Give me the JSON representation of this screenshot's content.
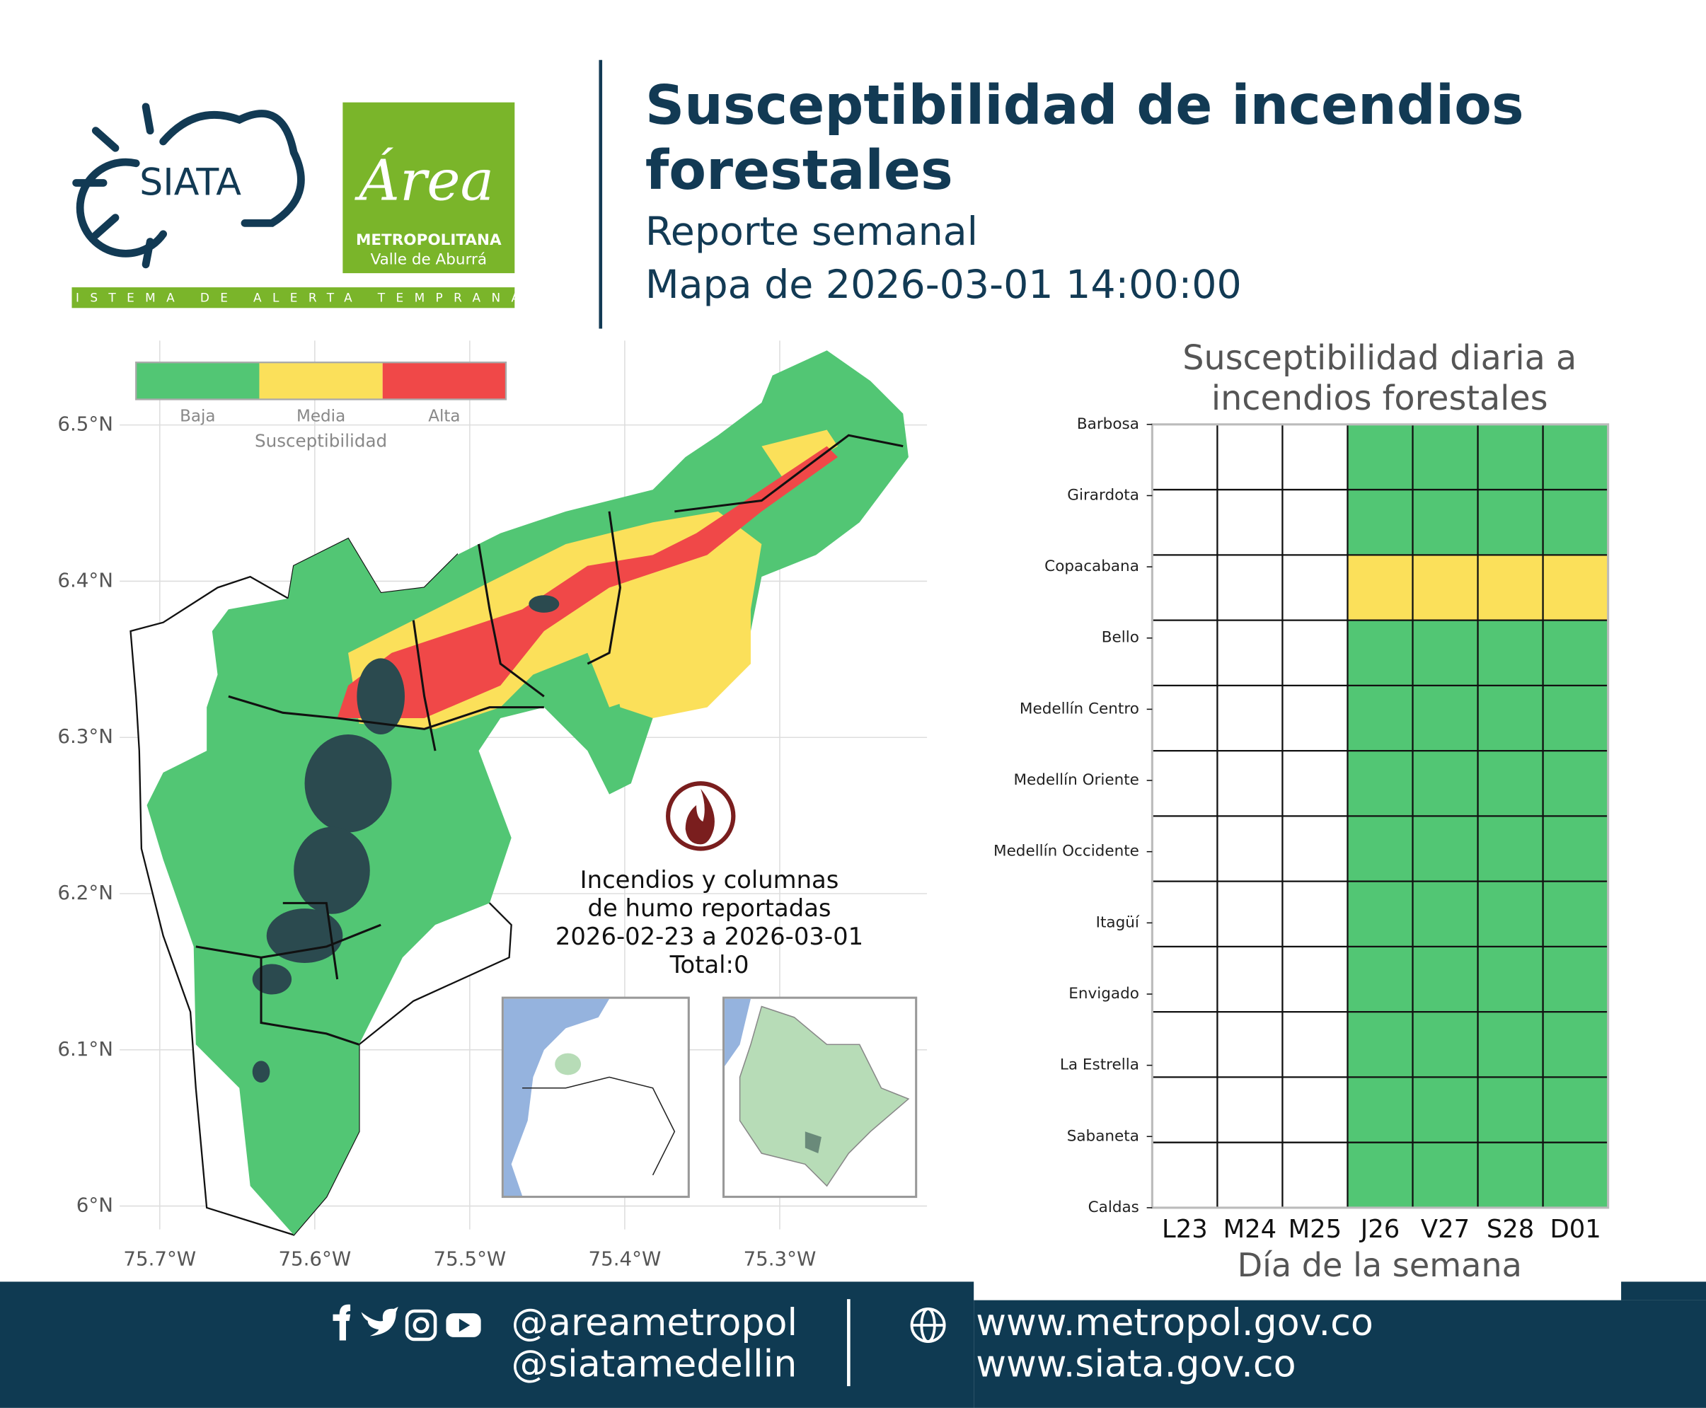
{
  "header": {
    "logos": {
      "siata": "SIATA",
      "area_title": "Área",
      "area_sub1": "METROPOLITANA",
      "area_sub2": "Valle de Aburrá",
      "tagline": "SISTEMA DE ALERTA TEMPRANA"
    },
    "title": [
      "Susceptibilidad de incendios",
      "forestales"
    ],
    "subtitle": "Reporte semanal",
    "map_date": "Mapa de 2026-03-01 14:00:00"
  },
  "map": {
    "xlim": [
      -75.775,
      -75.205
    ],
    "ylim": [
      5.985,
      6.554
    ],
    "xticks": [
      {
        "value": -75.7,
        "label": "75.7°W"
      },
      {
        "value": -75.6,
        "label": "75.6°W"
      },
      {
        "value": -75.5,
        "label": "75.5°W"
      },
      {
        "value": -75.4,
        "label": "75.4°W"
      },
      {
        "value": -75.3,
        "label": "75.3°W"
      }
    ],
    "yticks": [
      {
        "value": 6.0,
        "label": "6°N"
      },
      {
        "value": 6.1,
        "label": "6.1°N"
      },
      {
        "value": 6.2,
        "label": "6.2°N"
      },
      {
        "value": 6.3,
        "label": "6.3°N"
      },
      {
        "value": 6.4,
        "label": "6.4°N"
      },
      {
        "value": 6.5,
        "label": "6.5°N"
      }
    ],
    "grid": true,
    "legend": {
      "title": "Susceptibilidad",
      "items": [
        {
          "label": "Baja",
          "color": "#52c674"
        },
        {
          "label": "Media",
          "color": "#fbe05a"
        },
        {
          "label": "Alta",
          "color": "#f04848"
        }
      ]
    },
    "annotation": [
      "Incendios y columnas",
      "de humo reportadas",
      "2026-02-23 a 2026-03-01",
      "Total:0"
    ]
  },
  "chart_data": {
    "type": "heatmap",
    "title": [
      "Susceptibilidad diaria a",
      "incendios forestales"
    ],
    "x_label": "Día de la semana",
    "categories": [
      "L23",
      "M24",
      "M25",
      "J26",
      "V27",
      "S28",
      "D01"
    ],
    "rows": [
      "Barbosa",
      "Girardota",
      "Copacabana",
      "Bello",
      "Medellín Centro",
      "Medellín Oriente",
      "Medellín Occidente",
      "Itagüí",
      "Envigado",
      "La Estrella",
      "Sabaneta",
      "Caldas"
    ],
    "values": [
      [
        null,
        null,
        null,
        "Baja",
        "Baja",
        "Baja",
        "Baja"
      ],
      [
        null,
        null,
        null,
        "Baja",
        "Baja",
        "Baja",
        "Baja"
      ],
      [
        null,
        null,
        null,
        "Media",
        "Media",
        "Media",
        "Media"
      ],
      [
        null,
        null,
        null,
        "Baja",
        "Baja",
        "Baja",
        "Baja"
      ],
      [
        null,
        null,
        null,
        "Baja",
        "Baja",
        "Baja",
        "Baja"
      ],
      [
        null,
        null,
        null,
        "Baja",
        "Baja",
        "Baja",
        "Baja"
      ],
      [
        null,
        null,
        null,
        "Baja",
        "Baja",
        "Baja",
        "Baja"
      ],
      [
        null,
        null,
        null,
        "Baja",
        "Baja",
        "Baja",
        "Baja"
      ],
      [
        null,
        null,
        null,
        "Baja",
        "Baja",
        "Baja",
        "Baja"
      ],
      [
        null,
        null,
        null,
        "Baja",
        "Baja",
        "Baja",
        "Baja"
      ],
      [
        null,
        null,
        null,
        "Baja",
        "Baja",
        "Baja",
        "Baja"
      ],
      [
        null,
        null,
        null,
        "Baja",
        "Baja",
        "Baja",
        "Baja"
      ]
    ]
  },
  "footer": {
    "handles": [
      "@areametropol",
      "@siatamedellin"
    ],
    "websites": [
      "www.metropol.gov.co",
      "www.siata.gov.co"
    ]
  }
}
